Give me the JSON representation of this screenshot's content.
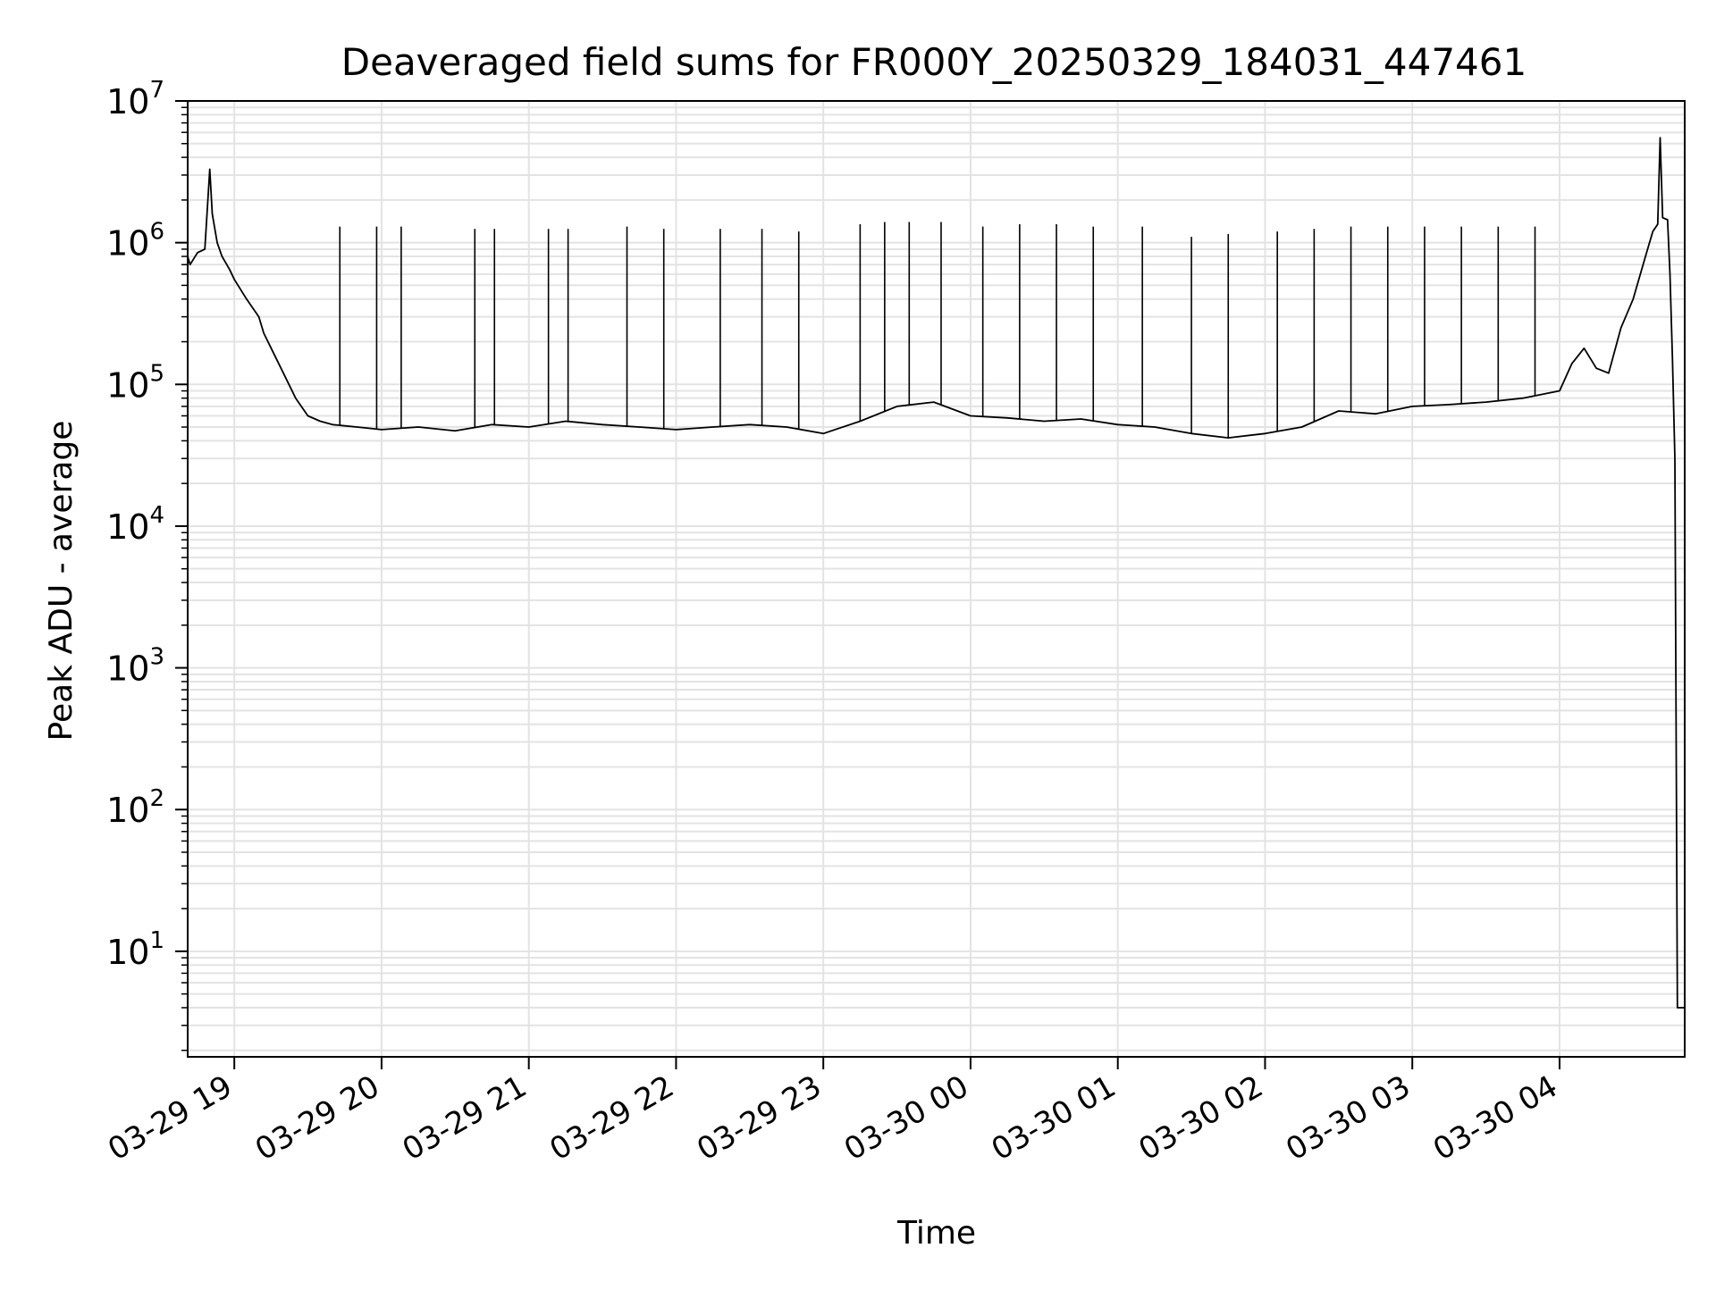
{
  "chart_data": {
    "type": "line",
    "title": "Deaveraged field sums for FR000Y_20250329_184031_447461",
    "xlabel": "Time",
    "ylabel": "Peak ADU - average",
    "yscale": "log",
    "xlim": [
      "2025-03-29 18:41",
      "2025-03-30 04:51"
    ],
    "ylim": [
      1.8,
      10000000
    ],
    "grid": true,
    "x_ticks": [
      "03-29 19",
      "03-29 20",
      "03-29 21",
      "03-29 22",
      "03-29 23",
      "03-30 00",
      "03-30 01",
      "03-30 02",
      "03-30 03",
      "03-30 04"
    ],
    "y_ticks": [
      {
        "base": "10",
        "exp": "1",
        "value": 10
      },
      {
        "base": "10",
        "exp": "2",
        "value": 100
      },
      {
        "base": "10",
        "exp": "3",
        "value": 1000
      },
      {
        "base": "10",
        "exp": "4",
        "value": 10000
      },
      {
        "base": "10",
        "exp": "5",
        "value": 100000
      },
      {
        "base": "10",
        "exp": "6",
        "value": 1000000
      },
      {
        "base": "10",
        "exp": "7",
        "value": 10000000
      }
    ],
    "line_color": "#000000",
    "series": [
      {
        "x": [
          "2025-03-29 18:41",
          "2025-03-29 18:42",
          "2025-03-29 18:45",
          "2025-03-29 18:48",
          "2025-03-29 18:50",
          "2025-03-29 18:51",
          "2025-03-29 18:53",
          "2025-03-29 18:55",
          "2025-03-29 18:58",
          "2025-03-29 19:00",
          "2025-03-29 19:05",
          "2025-03-29 19:10",
          "2025-03-29 19:12",
          "2025-03-29 19:15",
          "2025-03-29 19:20",
          "2025-03-29 19:25",
          "2025-03-29 19:30",
          "2025-03-29 19:35",
          "2025-03-29 19:40",
          "2025-03-29 19:50",
          "2025-03-29 20:00",
          "2025-03-29 20:15",
          "2025-03-29 20:30",
          "2025-03-29 20:45",
          "2025-03-29 21:00",
          "2025-03-29 21:15",
          "2025-03-29 21:30",
          "2025-03-29 21:45",
          "2025-03-29 22:00",
          "2025-03-29 22:15",
          "2025-03-29 22:30",
          "2025-03-29 22:45",
          "2025-03-29 23:00",
          "2025-03-29 23:15",
          "2025-03-29 23:30",
          "2025-03-29 23:45",
          "2025-03-30 00:00",
          "2025-03-30 00:15",
          "2025-03-30 00:30",
          "2025-03-30 00:45",
          "2025-03-30 01:00",
          "2025-03-30 01:15",
          "2025-03-30 01:30",
          "2025-03-30 01:45",
          "2025-03-30 02:00",
          "2025-03-30 02:15",
          "2025-03-30 02:30",
          "2025-03-30 02:45",
          "2025-03-30 03:00",
          "2025-03-30 03:15",
          "2025-03-30 03:30",
          "2025-03-30 03:45",
          "2025-03-30 04:00",
          "2025-03-30 04:05",
          "2025-03-30 04:10",
          "2025-03-30 04:15",
          "2025-03-30 04:20",
          "2025-03-30 04:25",
          "2025-03-30 04:30",
          "2025-03-30 04:35",
          "2025-03-30 04:38",
          "2025-03-30 04:40",
          "2025-03-30 04:41",
          "2025-03-30 04:42",
          "2025-03-30 04:44",
          "2025-03-30 04:45",
          "2025-03-30 04:46",
          "2025-03-30 04:47",
          "2025-03-30 04:48",
          "2025-03-30 04:51"
        ],
        "y": [
          800000,
          700000,
          850000,
          900000,
          3300000,
          1600000,
          1000000,
          800000,
          650000,
          550000,
          400000,
          300000,
          230000,
          180000,
          120000,
          80000,
          60000,
          55000,
          52000,
          50000,
          48000,
          50000,
          47000,
          52000,
          50000,
          55000,
          52000,
          50000,
          48000,
          50000,
          52000,
          50000,
          45000,
          55000,
          70000,
          75000,
          60000,
          58000,
          55000,
          57000,
          52000,
          50000,
          45000,
          42000,
          45000,
          50000,
          65000,
          62000,
          70000,
          72000,
          75000,
          80000,
          90000,
          140000,
          180000,
          130000,
          120000,
          250000,
          400000,
          800000,
          1200000,
          1350000,
          5500000,
          1500000,
          1450000,
          600000,
          150000,
          30000,
          4,
          4
        ]
      }
    ],
    "spikes": [
      {
        "x": "2025-03-29 19:43",
        "y": 1300000
      },
      {
        "x": "2025-03-29 19:58",
        "y": 1300000
      },
      {
        "x": "2025-03-29 20:08",
        "y": 1300000
      },
      {
        "x": "2025-03-29 20:38",
        "y": 1250000
      },
      {
        "x": "2025-03-29 20:46",
        "y": 1250000
      },
      {
        "x": "2025-03-29 21:08",
        "y": 1250000
      },
      {
        "x": "2025-03-29 21:16",
        "y": 1250000
      },
      {
        "x": "2025-03-29 21:40",
        "y": 1300000
      },
      {
        "x": "2025-03-29 21:55",
        "y": 1250000
      },
      {
        "x": "2025-03-29 22:18",
        "y": 1250000
      },
      {
        "x": "2025-03-29 22:35",
        "y": 1250000
      },
      {
        "x": "2025-03-29 22:50",
        "y": 1200000
      },
      {
        "x": "2025-03-29 23:15",
        "y": 1350000
      },
      {
        "x": "2025-03-29 23:25",
        "y": 1400000
      },
      {
        "x": "2025-03-29 23:35",
        "y": 1400000
      },
      {
        "x": "2025-03-29 23:48",
        "y": 1400000
      },
      {
        "x": "2025-03-30 00:05",
        "y": 1300000
      },
      {
        "x": "2025-03-30 00:20",
        "y": 1350000
      },
      {
        "x": "2025-03-30 00:35",
        "y": 1350000
      },
      {
        "x": "2025-03-30 00:50",
        "y": 1300000
      },
      {
        "x": "2025-03-30 01:10",
        "y": 1300000
      },
      {
        "x": "2025-03-30 01:30",
        "y": 1100000
      },
      {
        "x": "2025-03-30 01:45",
        "y": 1150000
      },
      {
        "x": "2025-03-30 02:05",
        "y": 1200000
      },
      {
        "x": "2025-03-30 02:20",
        "y": 1250000
      },
      {
        "x": "2025-03-30 02:35",
        "y": 1300000
      },
      {
        "x": "2025-03-30 02:50",
        "y": 1300000
      },
      {
        "x": "2025-03-30 03:05",
        "y": 1300000
      },
      {
        "x": "2025-03-30 03:20",
        "y": 1300000
      },
      {
        "x": "2025-03-30 03:35",
        "y": 1300000
      },
      {
        "x": "2025-03-30 03:50",
        "y": 1300000
      }
    ]
  }
}
